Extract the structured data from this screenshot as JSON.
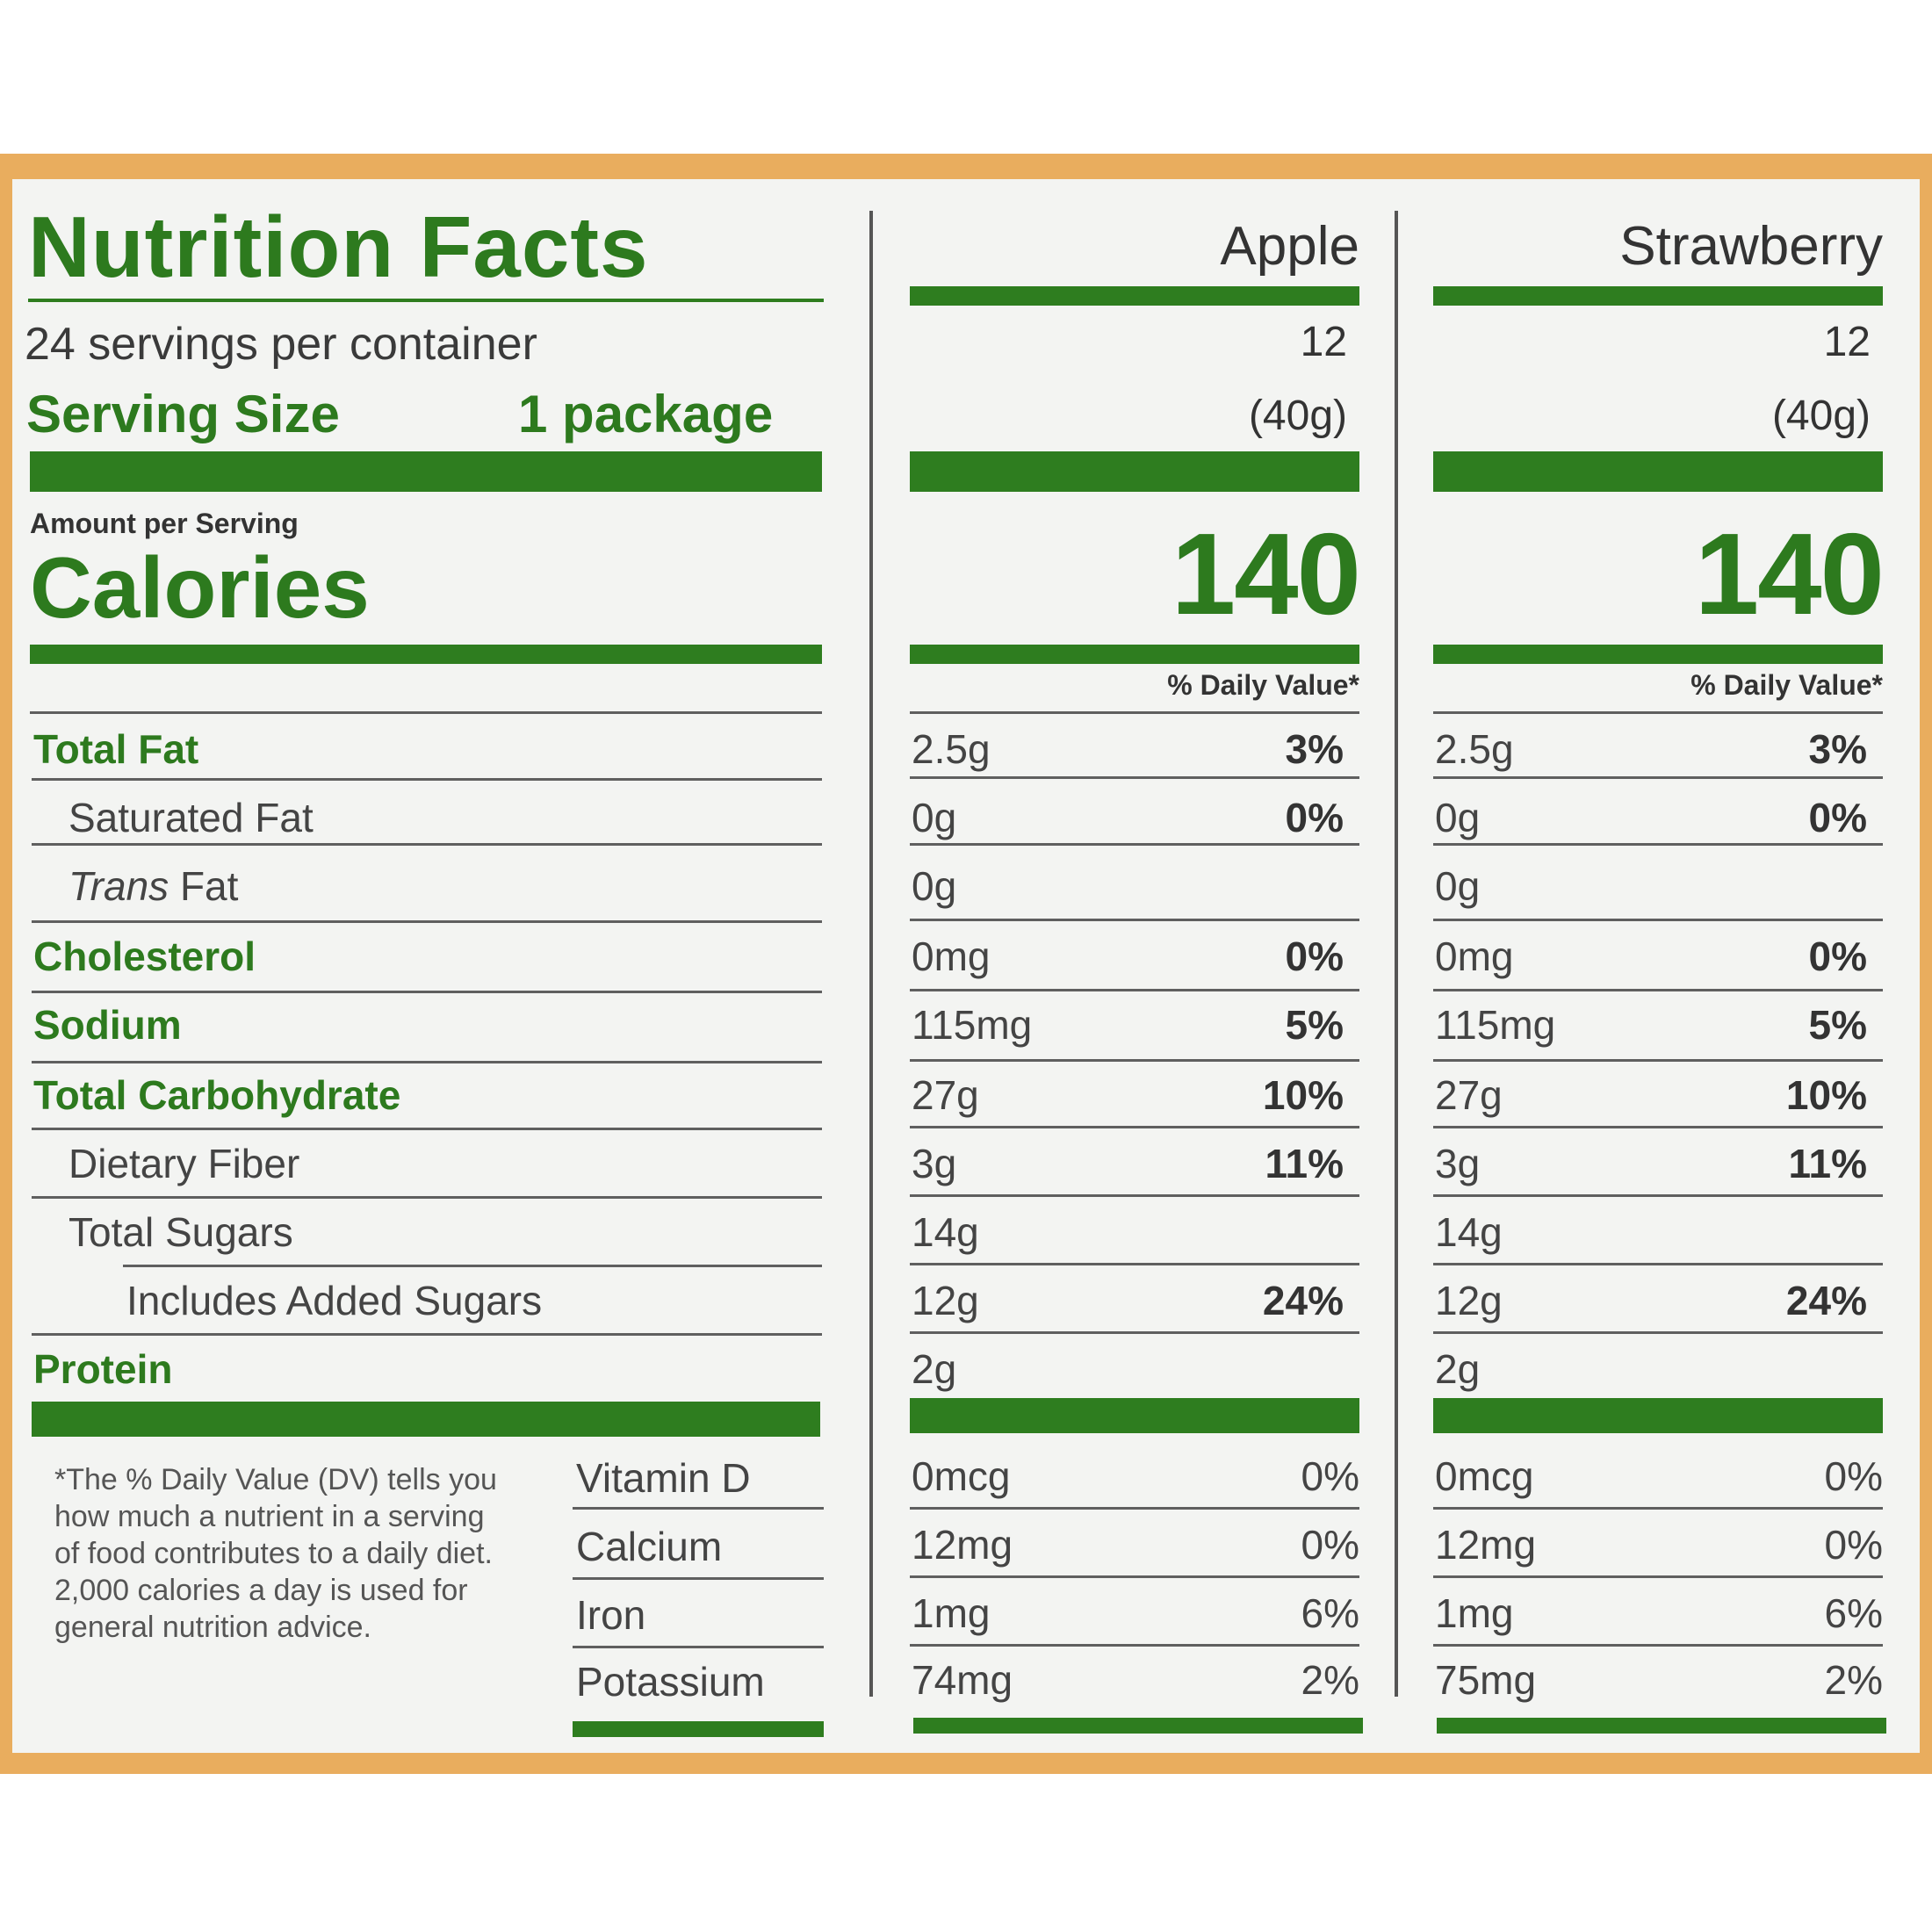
{
  "label": {
    "title": "Nutrition Facts",
    "servings_per_container": "24 servings per container",
    "serving_size_label": "Serving Size",
    "serving_size_value": "1 package",
    "amount_per_serving": "Amount per Serving",
    "calories_label": "Calories",
    "daily_value_header": "% Daily Value*",
    "footnote": "*The % Daily Value (DV) tells you how much a nutrient in a serving of food contributes to a daily diet. 2,000 calories a day is used for general nutrition advice."
  },
  "nutrients": [
    "Total Fat",
    "Saturated Fat",
    "Trans",
    "Cholesterol",
    "Sodium",
    "Total Carbohydrate",
    "Dietary Fiber",
    "Total Sugars",
    "Includes Added Sugars",
    "Protein"
  ],
  "trans_fat_suffix": " Fat",
  "vitamins": [
    "Vitamin D",
    "Calcium",
    "Iron",
    "Potassium"
  ],
  "columns": [
    {
      "name": "Apple",
      "servings": "12",
      "serving_weight": "(40g)",
      "calories": "140",
      "amounts": [
        "2.5g",
        "0g",
        "0g",
        "0mg",
        "115mg",
        "27g",
        "3g",
        "14g",
        "12g",
        "2g"
      ],
      "dv": [
        "3%",
        "0%",
        "",
        "0%",
        "5%",
        "10%",
        "11%",
        "",
        "24%",
        ""
      ],
      "vitamin_amounts": [
        "0mcg",
        "12mg",
        "1mg",
        "74mg"
      ],
      "vitamin_dv": [
        "0%",
        "0%",
        "6%",
        "2%"
      ]
    },
    {
      "name": "Strawberry",
      "servings": "12",
      "serving_weight": "(40g)",
      "calories": "140",
      "amounts": [
        "2.5g",
        "0g",
        "0g",
        "0mg",
        "115mg",
        "27g",
        "3g",
        "14g",
        "12g",
        "2g"
      ],
      "dv": [
        "3%",
        "0%",
        "",
        "0%",
        "5%",
        "10%",
        "11%",
        "",
        "24%",
        ""
      ],
      "vitamin_amounts": [
        "0mcg",
        "12mg",
        "1mg",
        "75mg"
      ],
      "vitamin_dv": [
        "0%",
        "0%",
        "6%",
        "2%"
      ]
    }
  ],
  "colors": {
    "green": "#2d7a1e",
    "background_orange": "#e9ad5e",
    "panel": "#f3f4f2"
  }
}
